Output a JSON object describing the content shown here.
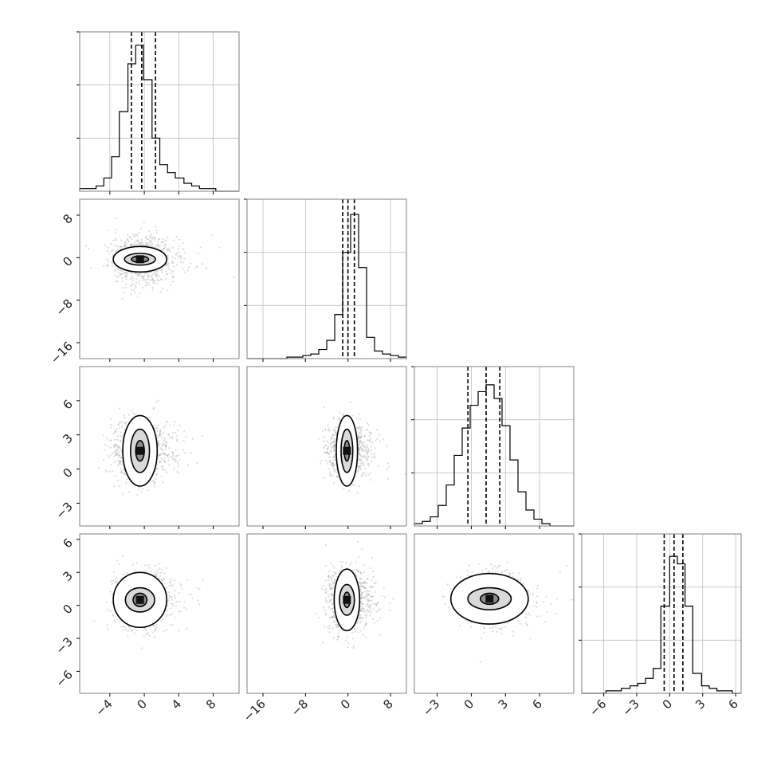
{
  "chart_data": {
    "type": "corner",
    "description_note": "",
    "parameters": 4,
    "colors": {
      "line": "#000000",
      "grid": "#c0c0c0",
      "scatter": "#9a9a9a",
      "frame": "#808080"
    },
    "axes": [
      {
        "range": [
          -7.5,
          11
        ],
        "ticks": [
          -4,
          0,
          4,
          8
        ],
        "tick_labels": [
          "−4",
          "0",
          "4",
          "8"
        ]
      },
      {
        "range": [
          -19,
          11
        ],
        "ticks": [
          -16,
          -8,
          0,
          8
        ],
        "tick_labels": [
          "−16",
          "−8",
          "0",
          "8"
        ]
      },
      {
        "range": [
          -5,
          9
        ],
        "ticks": [
          -3,
          0,
          3,
          6
        ],
        "tick_labels": [
          "−3",
          "0",
          "3",
          "6"
        ]
      },
      {
        "range": [
          -8,
          6.5
        ],
        "ticks": [
          -6,
          -3,
          0,
          3,
          6
        ],
        "tick_labels": [
          "−6",
          "−3",
          "0",
          "3",
          "6"
        ]
      }
    ],
    "histograms": [
      {
        "param": 0,
        "bin_edges": [
          -7.5,
          -6.6,
          -5.6,
          -4.7,
          -3.8,
          -2.9,
          -1.9,
          -1.0,
          -0.1,
          0.9,
          1.8,
          2.7,
          3.6,
          4.6,
          5.5,
          6.4,
          7.4,
          8.3,
          9.2,
          10.2,
          11.0
        ],
        "counts": [
          1,
          1,
          2,
          5,
          13,
          30,
          48,
          55,
          42,
          20,
          10,
          7,
          5,
          3,
          2,
          1,
          1,
          0,
          0,
          0
        ],
        "quantiles": [
          -1.5,
          -0.3,
          1.3
        ],
        "ymax": 60
      },
      {
        "param": 1,
        "bin_edges": [
          -19,
          -17.5,
          -16,
          -14.5,
          -13,
          -11.5,
          -10,
          -8.5,
          -7,
          -5.5,
          -4,
          -2.5,
          -1,
          0.5,
          2,
          3.5,
          5,
          6.5,
          8,
          9.5,
          11
        ],
        "counts": [
          0,
          0,
          0,
          0,
          0,
          1,
          1,
          2,
          3,
          6,
          12,
          29,
          70,
          95,
          60,
          14,
          5,
          3,
          2,
          1
        ],
        "quantiles": [
          -1.0,
          0.0,
          1.2
        ],
        "ymax": 105
      },
      {
        "param": 2,
        "bin_edges": [
          -5,
          -4.3,
          -3.6,
          -2.9,
          -2.2,
          -1.5,
          -0.8,
          -0.1,
          0.6,
          1.3,
          2.0,
          2.7,
          3.4,
          4.1,
          4.8,
          5.5,
          6.2,
          6.9,
          7.6,
          8.3,
          9.0
        ],
        "counts": [
          1,
          2,
          4,
          9,
          18,
          31,
          43,
          53,
          59,
          62,
          56,
          44,
          29,
          15,
          7,
          3,
          1,
          0,
          0,
          0
        ],
        "quantiles": [
          -0.3,
          1.3,
          2.5
        ],
        "ymax": 70
      },
      {
        "param": 3,
        "bin_edges": [
          -8,
          -7.3,
          -6.5,
          -5.8,
          -5.1,
          -4.4,
          -3.6,
          -2.9,
          -2.2,
          -1.5,
          -0.8,
          -0.0,
          0.7,
          1.4,
          2.1,
          2.9,
          3.6,
          4.3,
          5.0,
          5.7,
          6.5
        ],
        "counts": [
          0,
          0,
          0,
          1,
          1,
          2,
          3,
          4,
          6,
          10,
          35,
          55,
          52,
          35,
          8,
          3,
          2,
          1,
          1,
          0
        ],
        "quantiles": [
          -0.5,
          0.4,
          1.2
        ],
        "ymax": 64
      }
    ],
    "pair_plots": [
      {
        "x": 0,
        "y": 1,
        "center": [
          -0.5,
          -0.3
        ],
        "spread": [
          1.8,
          2.2
        ],
        "contours": [
          [
            1.0,
            0.6
          ],
          [
            1.8,
            1.1
          ],
          [
            3.1,
            2.4
          ]
        ]
      },
      {
        "x": 0,
        "y": 2,
        "center": [
          -0.5,
          1.6
        ],
        "spread": [
          1.6,
          1.3
        ],
        "contours": [
          [
            0.5,
            0.9
          ],
          [
            1.1,
            1.9
          ],
          [
            2.0,
            3.1
          ]
        ]
      },
      {
        "x": 1,
        "y": 2,
        "center": [
          -0.2,
          1.6
        ],
        "spread": [
          1.8,
          1.2
        ],
        "contours": [
          [
            0.5,
            0.9
          ],
          [
            1.1,
            1.9
          ],
          [
            2.0,
            3.1
          ]
        ]
      },
      {
        "x": 0,
        "y": 3,
        "center": [
          -0.5,
          0.5
        ],
        "spread": [
          1.6,
          1.3
        ],
        "contours": [
          [
            0.8,
            0.6
          ],
          [
            1.7,
            1.1
          ],
          [
            3.1,
            2.5
          ]
        ]
      },
      {
        "x": 1,
        "y": 3,
        "center": [
          -0.2,
          0.5
        ],
        "spread": [
          2.0,
          1.4
        ],
        "contours": [
          [
            0.6,
            0.7
          ],
          [
            1.4,
            1.4
          ],
          [
            2.4,
            2.8
          ]
        ]
      },
      {
        "x": 2,
        "y": 3,
        "center": [
          1.6,
          0.6
        ],
        "spread": [
          1.4,
          1.2
        ],
        "contours": [
          [
            0.8,
            0.5
          ],
          [
            1.9,
            1.0
          ],
          [
            3.4,
            2.3
          ]
        ]
      }
    ]
  }
}
